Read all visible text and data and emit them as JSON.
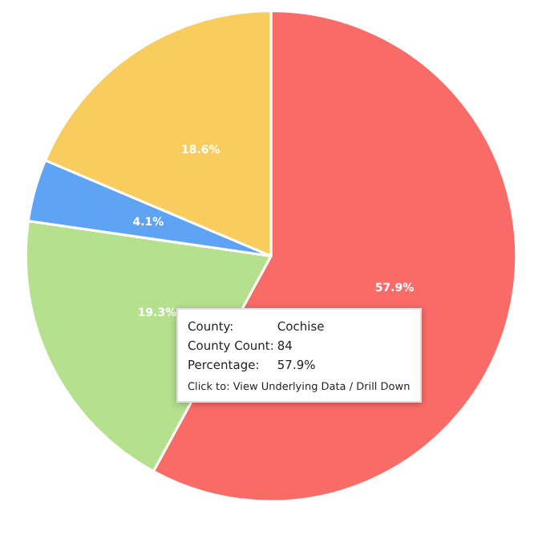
{
  "chart_data": {
    "type": "pie",
    "categories": [
      null,
      null,
      null,
      null
    ],
    "values": [
      57.9,
      19.3,
      4.1,
      18.6
    ],
    "colors": [
      "#f96b66",
      "#b5e08e",
      "#5fa3f5",
      "#f8cd5d"
    ],
    "value_labels": [
      "57.9%",
      "19.3%",
      "4.1%",
      "18.6%"
    ],
    "annotations": [
      "County:",
      "Cochise",
      "County Count:",
      "84",
      "Percentage:",
      "57.9%",
      "Click to: View Underlying Data / Drill Down"
    ]
  }
}
